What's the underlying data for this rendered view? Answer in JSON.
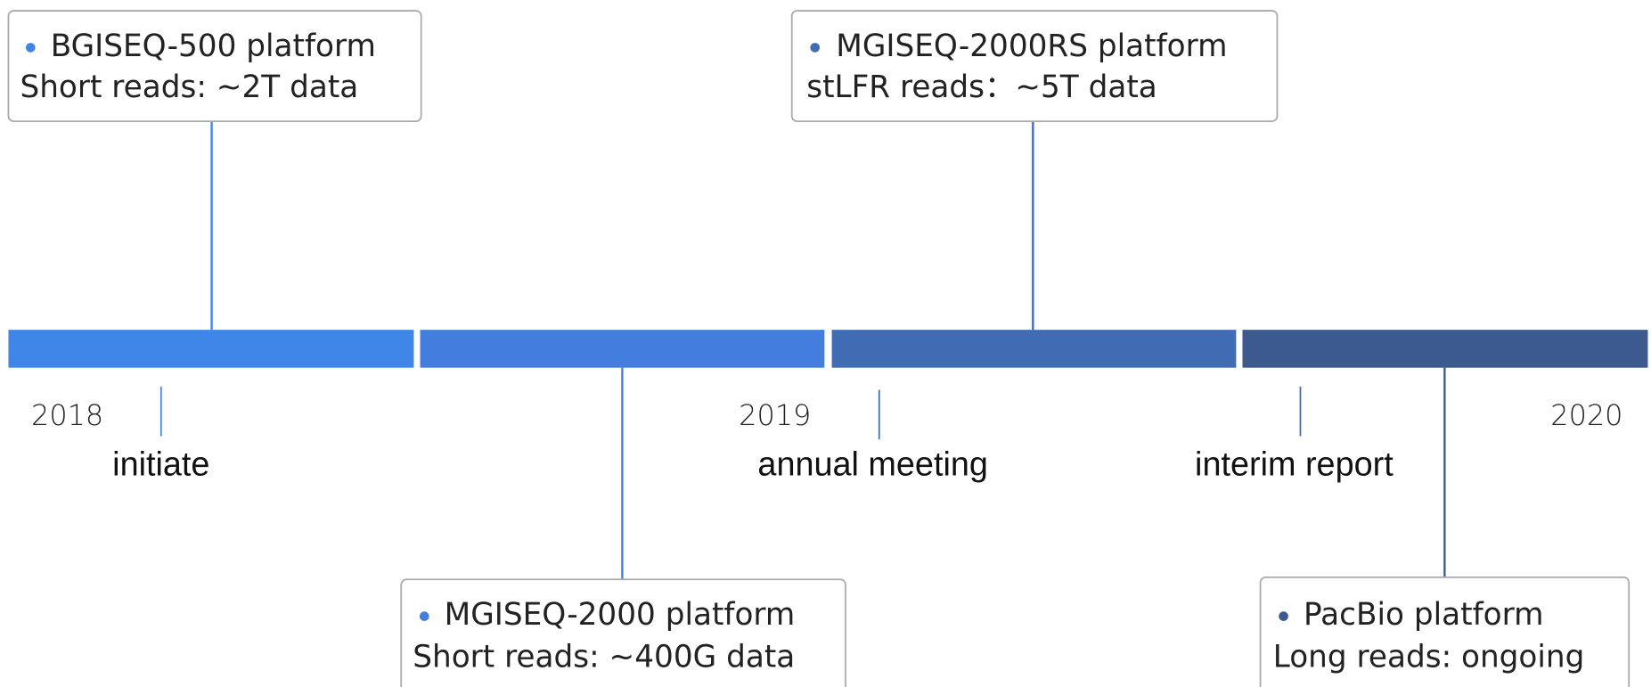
{
  "timeline": {
    "years": [
      "2018",
      "2019",
      "2020"
    ],
    "milestones": [
      "initiate",
      "annual meeting",
      "interim report"
    ],
    "events": [
      {
        "line1": "BGISEQ-500 platform",
        "line2": "Short reads: ~2T data"
      },
      {
        "line1": "MGISEQ-2000 platform",
        "line2": "Short reads: ~400G data"
      },
      {
        "line1": "MGISEQ-2000RS platform",
        "line2": "stLFR reads：~5T data"
      },
      {
        "line1": "PacBio platform",
        "line2": "Long reads: ongoing"
      }
    ]
  }
}
